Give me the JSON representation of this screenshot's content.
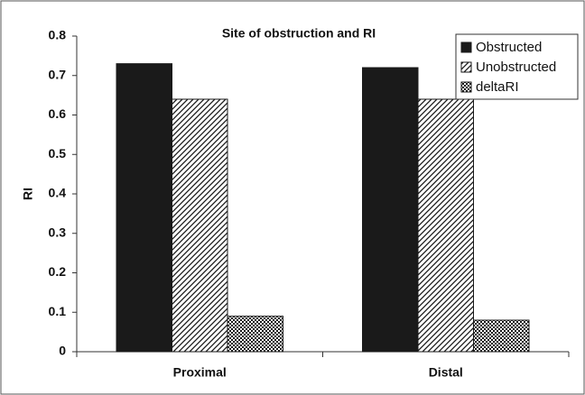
{
  "chart_data": {
    "type": "bar",
    "title": "Site of obstruction and RI",
    "y_label": "RI",
    "categories": [
      "Proximal",
      "Distal"
    ],
    "series": [
      {
        "name": "Obstructed",
        "color": "#1a1a1a",
        "pattern": "solid",
        "values": [
          0.73,
          0.72
        ]
      },
      {
        "name": "Unobstructed",
        "color": "#1a1a1a",
        "pattern": "hatch",
        "values": [
          0.64,
          0.64
        ]
      },
      {
        "name": "deltaRI",
        "color": "#1a1a1a",
        "pattern": "checker",
        "values": [
          0.09,
          0.08
        ]
      }
    ],
    "ylim": [
      0,
      0.8
    ],
    "yticks": [
      0,
      0.1,
      0.2,
      0.3,
      0.4,
      0.5,
      0.6,
      0.7,
      0.8
    ],
    "grid": false,
    "legend": "top-right"
  }
}
